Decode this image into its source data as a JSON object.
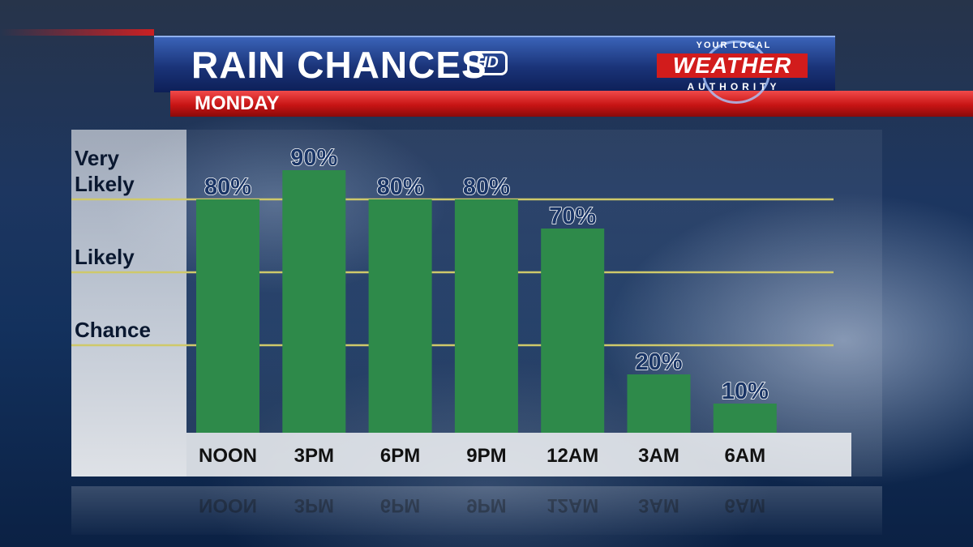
{
  "header": {
    "title": "RAIN CHANCES",
    "hd_badge": "HD",
    "subtitle": "MONDAY"
  },
  "logo": {
    "top_text": "YOUR LOCAL",
    "main_text": "WEATHER",
    "bottom_text": "AUTHORITY"
  },
  "colors": {
    "bar": "#2e8a4a",
    "threshold_line": "#cfc96a",
    "banner_blue": "#1a3378",
    "banner_red": "#c81414"
  },
  "chart_data": {
    "type": "bar",
    "title": "RAIN CHANCES",
    "subtitle": "MONDAY",
    "categories": [
      "NOON",
      "3PM",
      "6PM",
      "9PM",
      "12AM",
      "3AM",
      "6AM"
    ],
    "values": [
      80,
      90,
      80,
      80,
      70,
      20,
      10
    ],
    "value_labels": [
      "80%",
      "90%",
      "80%",
      "80%",
      "70%",
      "20%",
      "10%"
    ],
    "unit": "%",
    "ylim": [
      0,
      100
    ],
    "thresholds": [
      {
        "label": "Chance",
        "value": 30
      },
      {
        "label": "Likely",
        "value": 55
      },
      {
        "label": "Very Likely",
        "value": 80
      }
    ],
    "grid": false,
    "legend": "none"
  }
}
